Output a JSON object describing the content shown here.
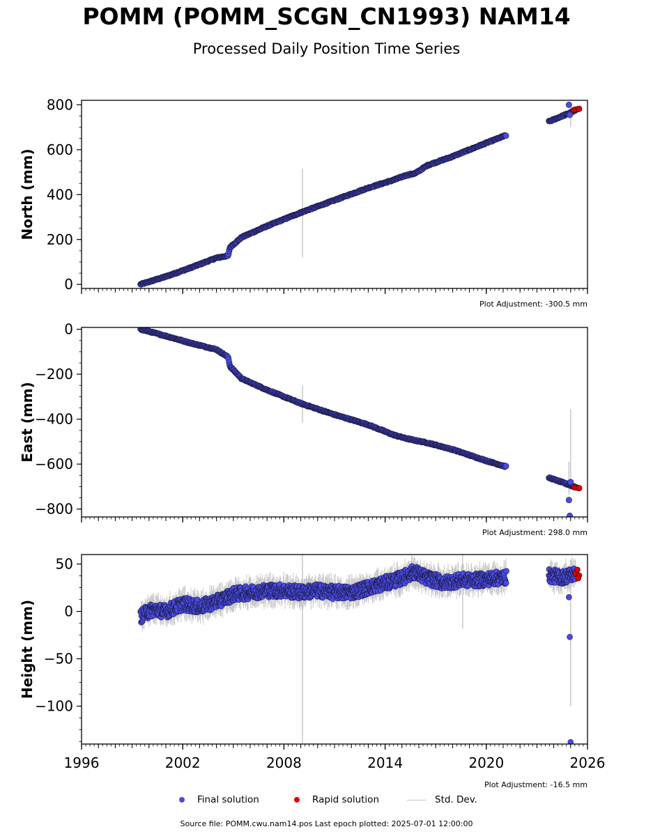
{
  "chart_data": {
    "type": "scatter",
    "title": "POMM (POMM_SCGN_CN1993) NAM14",
    "subtitle": "Processed Daily Position Time Series",
    "x_ticks": [
      "1996",
      "2002",
      "2008",
      "2014",
      "2020",
      "2026"
    ],
    "xlim": [
      1996,
      2026
    ],
    "panels": [
      {
        "ylabel": "North (mm)",
        "ylim": [
          -18,
          820
        ],
        "y_ticks": [
          0,
          200,
          400,
          600,
          800
        ],
        "adjustment": "Plot Adjustment: -300.5 mm",
        "final_series": [
          [
            1999.5,
            0
          ],
          [
            2001,
            35
          ],
          [
            2002.5,
            75
          ],
          [
            2004,
            118
          ],
          [
            2004.7,
            128
          ],
          [
            2004.8,
            165
          ],
          [
            2005.5,
            210
          ],
          [
            2007,
            260
          ],
          [
            2009,
            320
          ],
          [
            2011,
            375
          ],
          [
            2013,
            430
          ],
          [
            2014.5,
            465
          ],
          [
            2015.2,
            485
          ],
          [
            2015.8,
            495
          ],
          [
            2016.5,
            530
          ],
          [
            2018,
            570
          ],
          [
            2020,
            630
          ],
          [
            2021.2,
            665
          ],
          [
            2023.7,
            725
          ],
          [
            2025.4,
            778
          ]
        ],
        "rapid_series": [
          [
            2025.2,
            777
          ],
          [
            2025.3,
            779
          ],
          [
            2025.45,
            781
          ],
          [
            2025.5,
            782
          ]
        ],
        "outliers": [
          [
            2024.9,
            800
          ],
          [
            2024.95,
            755
          ]
        ],
        "errorbars": [
          [
            2009.1,
            120,
            515
          ],
          [
            2025.0,
            700,
            790
          ]
        ]
      },
      {
        "ylabel": "East (mm)",
        "ylim": [
          -835,
          8
        ],
        "y_ticks": [
          0,
          -200,
          -400,
          -600,
          -800
        ],
        "adjustment": "Plot Adjustment: 298.0 mm",
        "final_series": [
          [
            1999.5,
            0
          ],
          [
            2001,
            -30
          ],
          [
            2002.5,
            -62
          ],
          [
            2004,
            -90
          ],
          [
            2004.7,
            -125
          ],
          [
            2004.8,
            -165
          ],
          [
            2005.5,
            -220
          ],
          [
            2007,
            -270
          ],
          [
            2009,
            -330
          ],
          [
            2011,
            -380
          ],
          [
            2013,
            -425
          ],
          [
            2014.5,
            -470
          ],
          [
            2015.2,
            -485
          ],
          [
            2015.8,
            -495
          ],
          [
            2016.5,
            -505
          ],
          [
            2018,
            -535
          ],
          [
            2020,
            -585
          ],
          [
            2021.2,
            -612
          ],
          [
            2023.7,
            -660
          ],
          [
            2025.4,
            -705
          ]
        ],
        "rapid_series": [
          [
            2025.2,
            -702
          ],
          [
            2025.3,
            -704
          ],
          [
            2025.45,
            -706
          ],
          [
            2025.5,
            -707
          ]
        ],
        "outliers": [
          [
            2024.9,
            -760
          ],
          [
            2024.95,
            -830
          ],
          [
            2025.0,
            -680
          ]
        ],
        "errorbars": [
          [
            2009.1,
            -250,
            -415
          ],
          [
            2025.0,
            -355,
            -720
          ],
          [
            2024.9,
            -590,
            -735
          ]
        ]
      },
      {
        "ylabel": "Height (mm)",
        "ylim": [
          -140,
          60
        ],
        "y_ticks": [
          50,
          0,
          -50,
          -100
        ],
        "adjustment": "Plot Adjustment: -16.5 mm",
        "final_series": [
          [
            1999.5,
            -5
          ],
          [
            2000.2,
            2
          ],
          [
            2001,
            0
          ],
          [
            2002,
            8
          ],
          [
            2003,
            5
          ],
          [
            2004,
            10
          ],
          [
            2005,
            18
          ],
          [
            2006,
            20
          ],
          [
            2007,
            22
          ],
          [
            2008,
            22
          ],
          [
            2009,
            20
          ],
          [
            2010,
            22
          ],
          [
            2011,
            20
          ],
          [
            2012,
            20
          ],
          [
            2013,
            25
          ],
          [
            2014,
            30
          ],
          [
            2015,
            35
          ],
          [
            2015.7,
            42
          ],
          [
            2016.5,
            35
          ],
          [
            2017.5,
            30
          ],
          [
            2018.5,
            33
          ],
          [
            2019.5,
            33
          ],
          [
            2020.5,
            35
          ],
          [
            2021.2,
            36
          ],
          [
            2023.7,
            38
          ],
          [
            2024.5,
            36
          ],
          [
            2025.3,
            40
          ]
        ],
        "rapid_series": [
          [
            2025.3,
            40
          ],
          [
            2025.4,
            44
          ],
          [
            2025.5,
            38
          ],
          [
            2025.45,
            35
          ]
        ],
        "outliers": [
          [
            2024.9,
            15
          ],
          [
            2024.95,
            -27
          ],
          [
            2025.0,
            -138
          ]
        ],
        "errorbars": [
          [
            2009.1,
            -140,
            60
          ],
          [
            2025.0,
            -100,
            55
          ],
          [
            2018.6,
            -18,
            60
          ]
        ]
      }
    ],
    "legend": {
      "final": "Final solution",
      "rapid": "Rapid solution",
      "std": "Std. Dev."
    },
    "colors": {
      "final": "#4a4ae8",
      "rapid": "#e00000",
      "std": "#c8c8c8",
      "edge": "#1a1a3a"
    }
  },
  "source_text": "Source file: POMM.cwu.nam14.pos  Last epoch plotted: 2025-07-01 12:00:00"
}
